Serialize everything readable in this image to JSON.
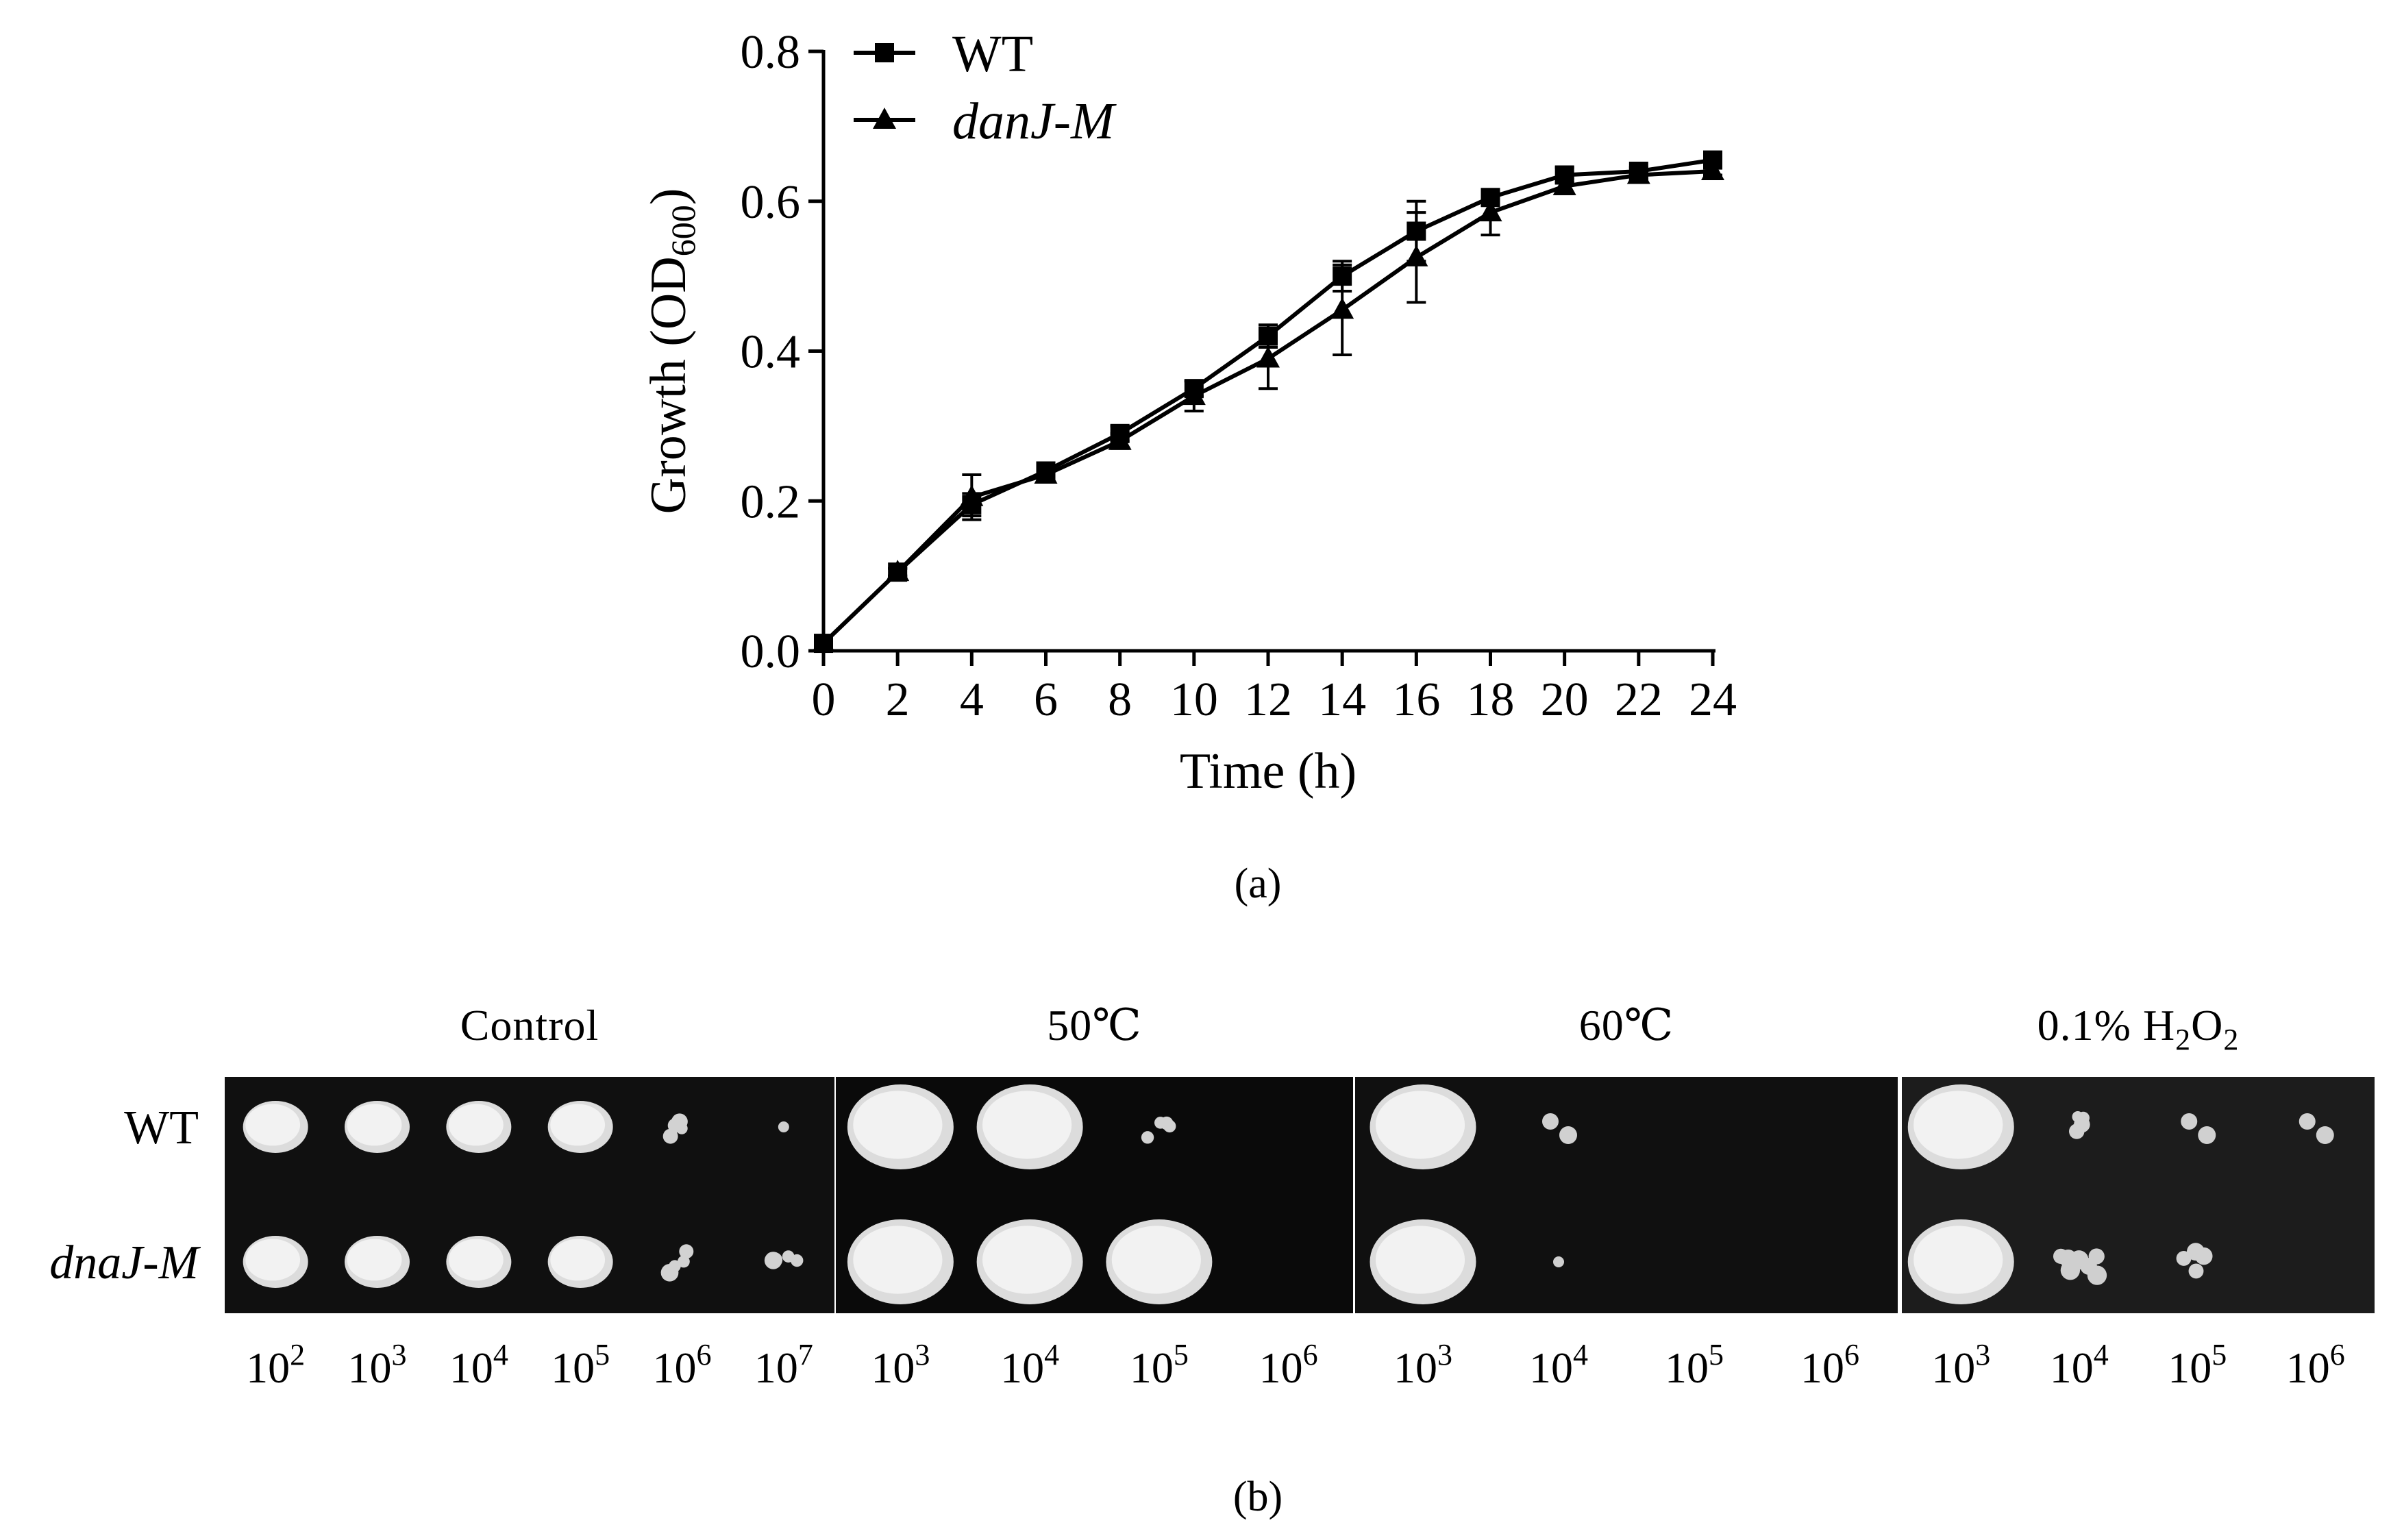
{
  "panel_a": {
    "label": "(a)"
  },
  "panel_b": {
    "label": "(b)",
    "strains": [
      {
        "name": "WT",
        "italic": false
      },
      {
        "name": "dnaJ-M",
        "italic": true
      }
    ],
    "conditions": [
      {
        "name": "Control",
        "dilutions": [
          "10^2",
          "10^3",
          "10^4",
          "10^5",
          "10^6",
          "10^7"
        ]
      },
      {
        "name": "50℃",
        "dilutions": [
          "10^3",
          "10^4",
          "10^5",
          "10^6"
        ]
      },
      {
        "name": "60℃",
        "dilutions": [
          "10^3",
          "10^4",
          "10^5",
          "10^6"
        ]
      },
      {
        "name": "0.1% H2O2",
        "dilutions": [
          "10^3",
          "10^4",
          "10^5",
          "10^6"
        ]
      }
    ],
    "colony_growth": {
      "WT": {
        "Control": [
          "confluent",
          "confluent",
          "confluent",
          "confluent",
          "few colonies",
          "single colony"
        ],
        "50℃": [
          "confluent",
          "confluent",
          "few colonies",
          "none"
        ],
        "60℃": [
          "confluent",
          "two colonies",
          "none",
          "none"
        ],
        "0.1% H2O2": [
          "confluent",
          "few colonies",
          "two colonies",
          "two colonies"
        ]
      },
      "dnaJ-M": {
        "Control": [
          "confluent",
          "confluent",
          "confluent",
          "confluent",
          "few colonies",
          "few colonies"
        ],
        "50℃": [
          "confluent",
          "confluent",
          "confluent",
          "none"
        ],
        "60℃": [
          "confluent",
          "single colony",
          "none",
          "none"
        ],
        "0.1% H2O2": [
          "confluent",
          "many colonies",
          "few colonies",
          "none"
        ]
      }
    }
  },
  "chart_data": {
    "type": "line",
    "title": "",
    "xlabel": "Time (h)",
    "ylabel": "Growth (OD600)",
    "ylabel_main": "Growth (OD",
    "ylabel_sub": "600",
    "ylabel_close": ")",
    "xlim": [
      0,
      24
    ],
    "ylim": [
      0,
      0.8
    ],
    "x_ticks": [
      0,
      2,
      4,
      6,
      8,
      10,
      12,
      14,
      16,
      18,
      20,
      22,
      24
    ],
    "x_tick_labels": [
      "0",
      "2",
      "4",
      "6",
      "8",
      "10",
      "12",
      "14",
      "16",
      "18",
      "20",
      "22",
      "24"
    ],
    "y_ticks": [
      0,
      0.2,
      0.4,
      0.6,
      0.8
    ],
    "y_tick_labels": [
      "0.0",
      "0.2",
      "0.4",
      "0.6",
      "0.8"
    ],
    "legend_position": "top-left",
    "x": [
      0,
      2,
      4,
      6,
      8,
      10,
      12,
      14,
      16,
      18,
      20,
      22,
      24
    ],
    "series": [
      {
        "name": "WT",
        "italic": false,
        "marker": "square",
        "values": [
          0.01,
          0.105,
          0.195,
          0.24,
          0.29,
          0.35,
          0.42,
          0.5,
          0.56,
          0.605,
          0.635,
          0.64,
          0.655
        ],
        "errors": [
          0.005,
          0.005,
          0.015,
          0.01,
          0.01,
          0.01,
          0.015,
          0.02,
          0.04,
          0.01,
          0.01,
          0.005,
          0.005
        ]
      },
      {
        "name": "danJ-M",
        "italic": true,
        "marker": "triangle",
        "values": [
          0.01,
          0.105,
          0.205,
          0.235,
          0.28,
          0.34,
          0.39,
          0.455,
          0.525,
          0.585,
          0.62,
          0.635,
          0.64
        ],
        "errors": [
          0.005,
          0.005,
          0.03,
          0.01,
          0.01,
          0.02,
          0.04,
          0.06,
          0.06,
          0.03,
          0.01,
          0.005,
          0.005
        ]
      }
    ]
  }
}
